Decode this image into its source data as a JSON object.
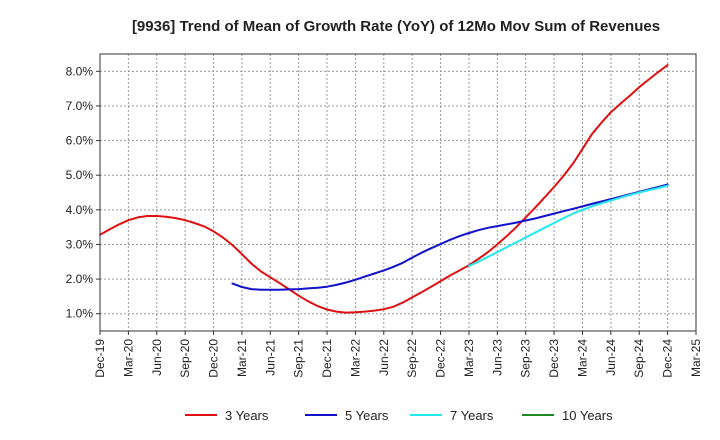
{
  "chart_data": {
    "type": "line",
    "title": "[9936]  Trend of Mean of Growth Rate (YoY) of 12Mo Mov Sum of Revenues",
    "xlabel": "",
    "ylabel": "",
    "x_ticks": [
      "Dec-19",
      "Mar-20",
      "Jun-20",
      "Sep-20",
      "Dec-20",
      "Mar-21",
      "Jun-21",
      "Sep-21",
      "Dec-21",
      "Mar-22",
      "Jun-22",
      "Sep-22",
      "Dec-22",
      "Mar-23",
      "Jun-23",
      "Sep-23",
      "Dec-23",
      "Mar-24",
      "Jun-24",
      "Sep-24",
      "Dec-24",
      "Mar-25"
    ],
    "y_ticks": [
      "1.0%",
      "2.0%",
      "3.0%",
      "4.0%",
      "5.0%",
      "6.0%",
      "7.0%",
      "8.0%"
    ],
    "y_tick_values": [
      1,
      2,
      3,
      4,
      5,
      6,
      7,
      8
    ],
    "xlim": [
      0,
      21
    ],
    "ylim": [
      0.5,
      8.5
    ],
    "grid": true,
    "legend_position": "bottom",
    "series": [
      {
        "name": "3 Years",
        "color": "#dd1111",
        "x": [
          0,
          0.33,
          0.67,
          1,
          1.33,
          1.67,
          2,
          2.33,
          2.67,
          3,
          3.33,
          3.67,
          4,
          4.33,
          4.67,
          5,
          5.33,
          5.67,
          6,
          6.33,
          6.67,
          7,
          7.33,
          7.67,
          8,
          8.33,
          8.67,
          9,
          9.33,
          9.67,
          10,
          10.33,
          10.67,
          11,
          11.33,
          11.67,
          12,
          12.33,
          12.67,
          13,
          13.33,
          13.67,
          14,
          14.33,
          14.67,
          15,
          15.33,
          15.67,
          16,
          16.33,
          16.67,
          17,
          17.33,
          17.67,
          18,
          18.33,
          18.67,
          19,
          19.33,
          19.67,
          20
        ],
        "values": [
          3.28,
          3.43,
          3.58,
          3.7,
          3.78,
          3.82,
          3.82,
          3.8,
          3.76,
          3.7,
          3.62,
          3.52,
          3.38,
          3.2,
          2.98,
          2.72,
          2.45,
          2.22,
          2.05,
          1.88,
          1.7,
          1.52,
          1.36,
          1.22,
          1.12,
          1.06,
          1.03,
          1.04,
          1.06,
          1.09,
          1.13,
          1.2,
          1.32,
          1.47,
          1.62,
          1.78,
          1.94,
          2.1,
          2.25,
          2.4,
          2.58,
          2.78,
          3.0,
          3.24,
          3.5,
          3.78,
          4.06,
          4.36,
          4.66,
          4.98,
          5.34,
          5.76,
          6.18,
          6.52,
          6.82,
          7.06,
          7.3,
          7.54,
          7.76,
          7.98,
          8.18
        ]
      },
      {
        "name": "5 Years",
        "color": "#1111cc",
        "x": [
          4.67,
          5,
          5.33,
          5.67,
          6,
          6.33,
          6.67,
          7,
          7.33,
          7.67,
          8,
          8.33,
          8.67,
          9,
          9.33,
          9.67,
          10,
          10.33,
          10.67,
          11,
          11.33,
          11.67,
          12,
          12.33,
          12.67,
          13,
          13.33,
          13.67,
          14,
          14.33,
          14.67,
          15,
          15.33,
          15.67,
          16,
          16.33,
          16.67,
          17,
          17.33,
          17.67,
          18,
          18.33,
          18.67,
          19,
          19.33,
          19.67,
          20
        ],
        "values": [
          1.87,
          1.77,
          1.71,
          1.69,
          1.69,
          1.69,
          1.7,
          1.71,
          1.73,
          1.75,
          1.78,
          1.83,
          1.9,
          1.98,
          2.07,
          2.16,
          2.25,
          2.35,
          2.47,
          2.62,
          2.76,
          2.89,
          3.01,
          3.13,
          3.24,
          3.33,
          3.41,
          3.48,
          3.53,
          3.58,
          3.63,
          3.69,
          3.75,
          3.82,
          3.89,
          3.96,
          4.03,
          4.1,
          4.17,
          4.24,
          4.31,
          4.38,
          4.45,
          4.52,
          4.59,
          4.66,
          4.73
        ]
      },
      {
        "name": "7 Years",
        "color": "#22e8ee",
        "x": [
          13,
          13.33,
          13.67,
          14,
          14.33,
          14.67,
          15,
          15.33,
          15.67,
          16,
          16.33,
          16.67,
          17,
          17.33,
          17.67,
          18,
          18.33,
          18.67,
          19,
          19.33,
          19.67,
          20
        ],
        "values": [
          2.38,
          2.5,
          2.64,
          2.78,
          2.92,
          3.06,
          3.2,
          3.34,
          3.48,
          3.62,
          3.76,
          3.89,
          4.0,
          4.1,
          4.19,
          4.27,
          4.35,
          4.43,
          4.5,
          4.57,
          4.63,
          4.7
        ]
      },
      {
        "name": "10 Years",
        "color": "#228822",
        "x": [],
        "values": []
      }
    ]
  }
}
